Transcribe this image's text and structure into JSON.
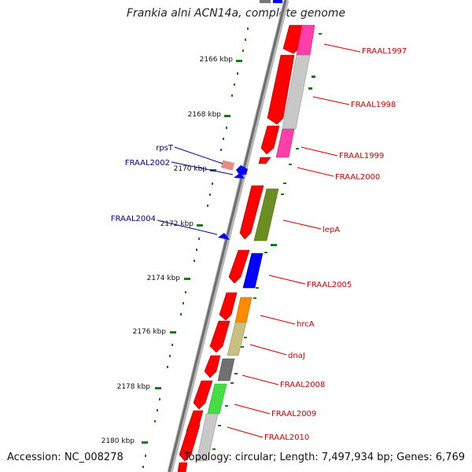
{
  "title": "Frankia alni ACN14a, complete genome",
  "footer": {
    "accession": "Accession: NC_008278",
    "summary": "Topology: circular; Length: 7,497,934 bp; Genes: 6,769"
  },
  "colors": {
    "backbone": "#8c8c8c",
    "ruler": "#1a7a1a",
    "label_forward": "#cc0000",
    "label_reverse": "#00008b",
    "cds_red": "#ff0000"
  },
  "ruler_ticks": [
    {
      "label": "2166 kbp"
    },
    {
      "label": "2168 kbp"
    },
    {
      "label": "2170 kbp"
    },
    {
      "label": "2172 kbp"
    },
    {
      "label": "2174 kbp"
    },
    {
      "label": "2176 kbp"
    },
    {
      "label": "2178 kbp"
    },
    {
      "label": "2180 kbp"
    }
  ],
  "forward_labels": [
    {
      "label": "FRAAL1997"
    },
    {
      "label": "FRAAL1998"
    },
    {
      "label": "FRAAL1999"
    },
    {
      "label": "FRAAL2000"
    },
    {
      "label": "lepA"
    },
    {
      "label": "FRAAL2005"
    },
    {
      "label": "hrcA"
    },
    {
      "label": "dnaJ"
    },
    {
      "label": "FRAAL2008"
    },
    {
      "label": "FRAAL2009"
    },
    {
      "label": "FRAAL2010"
    }
  ],
  "reverse_labels": [
    {
      "label": "rpsT"
    },
    {
      "label": "FRAAL2002"
    },
    {
      "label": "FRAAL2004"
    }
  ]
}
